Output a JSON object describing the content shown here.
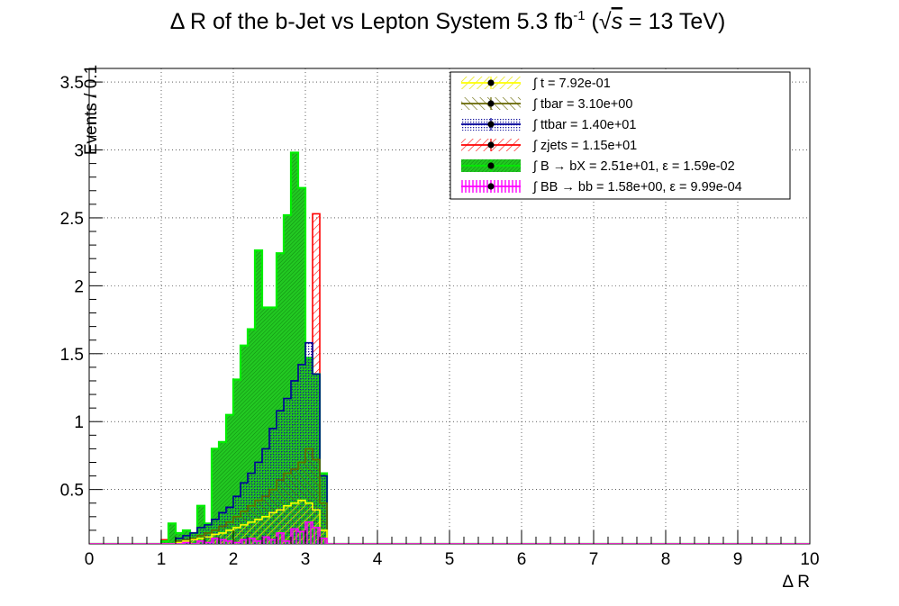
{
  "chart_data": {
    "type": "histogram",
    "title": "Δ R of the b-Jet vs Lepton System 5.3 fb",
    "title_sup": "-1",
    "title_energy_open": " (",
    "title_sqrt": "√",
    "title_s": "s",
    "title_energy": " = 13 TeV)",
    "xlabel": "Δ R",
    "ylabel": "Events / 0.1",
    "xlim": [
      0,
      10
    ],
    "ylim": [
      0.1,
      3.6
    ],
    "grid": true,
    "legend_position": "top-right",
    "x_ticks": [
      "0",
      "1",
      "2",
      "3",
      "4",
      "5",
      "6",
      "7",
      "8",
      "9",
      "10"
    ],
    "y_ticks": [
      "0.5",
      "1",
      "1.5",
      "2",
      "2.5",
      "3",
      "3.5"
    ],
    "y_tick_values": [
      0.5,
      1,
      1.5,
      2,
      2.5,
      3,
      3.5
    ],
    "bin_edges_start": 1.0,
    "bin_width": 0.1,
    "series": [
      {
        "name": "t = 7.92e-01",
        "color": "#ffff00",
        "style": "hatch-diag",
        "values": [
          0.1,
          0.1,
          0.11,
          0.12,
          0.13,
          0.14,
          0.15,
          0.17,
          0.18,
          0.2,
          0.22,
          0.24,
          0.26,
          0.28,
          0.3,
          0.33,
          0.35,
          0.38,
          0.4,
          0.42,
          0.4,
          0.35,
          0.2
        ]
      },
      {
        "name": "tbar = 3.10e+00",
        "color": "#666600",
        "style": "hatch-back",
        "values": [
          0.1,
          0.1,
          0.12,
          0.13,
          0.14,
          0.16,
          0.18,
          0.2,
          0.23,
          0.26,
          0.3,
          0.34,
          0.38,
          0.42,
          0.45,
          0.5,
          0.57,
          0.62,
          0.65,
          0.7,
          0.8,
          0.72,
          0.4
        ]
      },
      {
        "name": "ttbar = 1.40e+01",
        "color": "#000099",
        "style": "dots",
        "values": [
          0.1,
          0.1,
          0.14,
          0.16,
          0.18,
          0.22,
          0.24,
          0.28,
          0.33,
          0.37,
          0.45,
          0.55,
          0.62,
          0.7,
          0.8,
          0.95,
          1.08,
          1.17,
          1.3,
          1.42,
          1.58,
          1.35,
          0.6
        ]
      },
      {
        "name": "zjets = 1.15e+01",
        "color": "#ff0000",
        "style": "hatch-diag",
        "values": [
          0.13,
          0.1,
          0.1,
          0.13,
          0.12,
          0.15,
          0.14,
          0.18,
          0.2,
          0.22,
          0.28,
          0.35,
          0.4,
          0.48,
          0.55,
          0.68,
          0.85,
          0.98,
          1.1,
          1.25,
          1.42,
          2.53,
          0.6
        ]
      },
      {
        "name": "B → bX = 2.51e+01, ε = 1.59e-02",
        "color": "#00ee00",
        "style": "fill",
        "values": [
          0.12,
          0.25,
          0.18,
          0.2,
          0.18,
          0.38,
          0.25,
          0.8,
          0.85,
          1.05,
          1.31,
          1.56,
          1.68,
          2.26,
          1.84,
          1.84,
          2.24,
          2.52,
          2.98,
          2.72,
          1.47,
          1.35,
          0.62
        ]
      },
      {
        "name": "BB → bb = 1.58e+00, ε = 9.99e-04",
        "color": "#ff00ff",
        "style": "vlines",
        "values": [
          0.1,
          0.1,
          0.1,
          0.11,
          0.1,
          0.12,
          0.11,
          0.14,
          0.13,
          0.12,
          0.11,
          0.13,
          0.14,
          0.12,
          0.15,
          0.13,
          0.18,
          0.12,
          0.21,
          0.19,
          0.26,
          0.22,
          0.14
        ]
      }
    ]
  },
  "legend": {
    "integral_symbol": "∫"
  }
}
